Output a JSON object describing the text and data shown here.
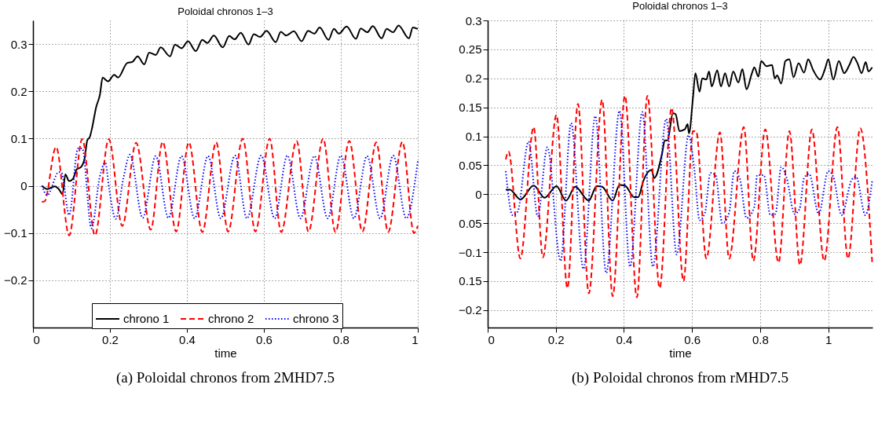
{
  "chart_data": [
    {
      "type": "line",
      "title": "Poloidal chronos 1–3",
      "xlabel": "time",
      "xlim": [
        0,
        1
      ],
      "ylim": [
        -0.3,
        0.35
      ],
      "xticks": [
        0,
        0.2,
        0.4,
        0.6,
        0.8,
        1
      ],
      "yticks": [
        {
          "value": -0.2,
          "label": "−0.2"
        },
        {
          "value": -0.1,
          "label": "−0.1"
        },
        0,
        0.1,
        0.2,
        0.3
      ],
      "grid": true,
      "legend": "bottom",
      "marker": "none",
      "annotations": [
        "(a) Poloidal chronos from 2MHD7.5"
      ],
      "series": [
        {
          "name": "chrono 1",
          "color": "#000000",
          "line_style": "solid",
          "x": [
            0.023,
            0.037,
            0.057,
            0.067,
            0.077,
            0.084,
            0.094,
            0.104,
            0.114,
            0.124,
            0.134,
            0.141,
            0.148,
            0.154,
            0.164,
            0.174,
            0.181,
            0.195,
            0.211,
            0.221,
            0.245,
            0.258,
            0.272,
            0.289,
            0.302,
            0.319,
            0.332,
            0.356,
            0.369,
            0.386,
            0.403,
            0.423,
            0.44,
            0.453,
            0.47,
            0.493,
            0.51,
            0.524,
            0.54,
            0.56,
            0.574,
            0.59,
            0.607,
            0.631,
            0.644,
            0.658,
            0.678,
            0.698,
            0.715,
            0.731,
            0.745,
            0.768,
            0.782,
            0.795,
            0.815,
            0.839,
            0.852,
            0.869,
            0.883,
            0.906,
            0.919,
            0.936,
            0.95,
            0.977,
            0.987,
            1.0
          ],
          "values": [
            0,
            -0.007,
            -0.001,
            -0.007,
            -0.018,
            0.024,
            0.01,
            0.015,
            0.035,
            0.039,
            0.057,
            0.096,
            0.104,
            0.124,
            0.166,
            0.193,
            0.229,
            0.221,
            0.235,
            0.229,
            0.26,
            0.262,
            0.274,
            0.257,
            0.282,
            0.277,
            0.293,
            0.274,
            0.299,
            0.291,
            0.306,
            0.285,
            0.309,
            0.302,
            0.318,
            0.293,
            0.317,
            0.31,
            0.324,
            0.299,
            0.321,
            0.315,
            0.328,
            0.304,
            0.326,
            0.318,
            0.327,
            0.306,
            0.328,
            0.322,
            0.335,
            0.309,
            0.332,
            0.322,
            0.337,
            0.311,
            0.333,
            0.325,
            0.338,
            0.312,
            0.332,
            0.325,
            0.339,
            0.312,
            0.335,
            0.332
          ]
        },
        {
          "name": "chrono 2",
          "color": "#ff0000",
          "line_style": "dashed",
          "x": [
            0.023,
            0.03,
            0.06,
            0.094,
            0.128,
            0.161,
            0.197,
            0.232,
            0.268,
            0.306,
            0.337,
            0.372,
            0.405,
            0.44,
            0.476,
            0.507,
            0.545,
            0.578,
            0.615,
            0.645,
            0.685,
            0.716,
            0.754,
            0.786,
            0.822,
            0.856,
            0.892,
            0.923,
            0.96,
            0.99,
            1.0
          ],
          "values": [
            -0.034,
            -0.033,
            0.082,
            -0.105,
            0.099,
            -0.105,
            0.099,
            -0.085,
            0.091,
            -0.093,
            0.093,
            -0.097,
            0.092,
            -0.098,
            0.092,
            -0.097,
            0.1,
            -0.097,
            0.1,
            -0.098,
            0.095,
            -0.097,
            0.1,
            -0.098,
            0.095,
            -0.097,
            0.092,
            -0.098,
            0.093,
            -0.1,
            -0.085
          ]
        },
        {
          "name": "chrono 3",
          "color": "#0000ff",
          "line_style": "dotted",
          "x": [
            0.023,
            0.037,
            0.067,
            0.074,
            0.094,
            0.117,
            0.128,
            0.152,
            0.174,
            0.188,
            0.198,
            0.215,
            0.235,
            0.252,
            0.285,
            0.319,
            0.352,
            0.386,
            0.42,
            0.455,
            0.488,
            0.525,
            0.556,
            0.593,
            0.628,
            0.661,
            0.695,
            0.731,
            0.766,
            0.8,
            0.834,
            0.868,
            0.902,
            0.936,
            0.97,
            1.0
          ],
          "values": [
            0,
            -0.02,
            0.029,
            0.028,
            -0.062,
            0.079,
            0.079,
            -0.09,
            0.021,
            0.049,
            -0.007,
            -0.07,
            0.016,
            0.066,
            -0.068,
            0.063,
            -0.068,
            0.063,
            -0.069,
            0.063,
            -0.069,
            0.064,
            -0.069,
            0.064,
            -0.069,
            0.064,
            -0.069,
            0.063,
            -0.069,
            0.064,
            -0.069,
            0.063,
            -0.069,
            0.064,
            -0.069,
            0.052
          ]
        }
      ]
    },
    {
      "type": "line",
      "title": "Poloidal chronos 1–3",
      "xlabel": "time",
      "xlim": [
        0,
        1.13
      ],
      "ylim": [
        -0.23,
        0.3
      ],
      "xticks": [
        0,
        0.2,
        0.4,
        0.6,
        0.8,
        1
      ],
      "yticks": [
        {
          "value": -0.2,
          "label": "−0.2"
        },
        {
          "value": -0.15,
          "label": "0.15"
        },
        {
          "value": -0.1,
          "label": "−0.1"
        },
        {
          "value": -0.05,
          "label": "0.05"
        },
        0,
        0.05,
        0.1,
        0.15,
        0.2,
        0.25,
        0.3
      ],
      "grid": true,
      "legend": "top",
      "marker": "none",
      "annotations": [
        "(b) Poloidal chronos from rMHD7.5"
      ],
      "series": [
        {
          "name": "chrono 1",
          "color": "#000000",
          "line_style": "solid",
          "x": [
            0.053,
            0.065,
            0.096,
            0.135,
            0.167,
            0.202,
            0.23,
            0.257,
            0.297,
            0.32,
            0.336,
            0.367,
            0.387,
            0.403,
            0.43,
            0.442,
            0.457,
            0.481,
            0.489,
            0.512,
            0.52,
            0.528,
            0.544,
            0.552,
            0.563,
            0.579,
            0.587,
            0.591,
            0.603,
            0.61,
            0.622,
            0.63,
            0.642,
            0.65,
            0.658,
            0.674,
            0.685,
            0.697,
            0.709,
            0.721,
            0.736,
            0.748,
            0.76,
            0.776,
            0.783,
            0.795,
            0.803,
            0.819,
            0.835,
            0.843,
            0.85,
            0.862,
            0.874,
            0.886,
            0.898,
            0.913,
            0.929,
            0.941,
            0.956,
            0.976,
            0.992,
            1.0,
            1.015,
            1.031,
            1.047,
            1.062,
            1.074,
            1.086,
            1.098,
            1.11,
            1.118,
            1.129
          ],
          "values": [
            0.008,
            0.008,
            -0.009,
            0.015,
            -0.006,
            0.014,
            -0.011,
            0.013,
            -0.011,
            0.014,
            0.013,
            -0.011,
            0.016,
            0.015,
            -0.005,
            -0.005,
            0.023,
            0.042,
            0.028,
            0.07,
            0.093,
            0.093,
            0.14,
            0.138,
            0.109,
            0.112,
            0.121,
            0.105,
            0.168,
            0.209,
            0.177,
            0.2,
            0.198,
            0.212,
            0.186,
            0.214,
            0.186,
            0.209,
            0.186,
            0.212,
            0.193,
            0.216,
            0.181,
            0.209,
            0.219,
            0.203,
            0.23,
            0.221,
            0.223,
            0.2,
            0.205,
            0.191,
            0.23,
            0.233,
            0.202,
            0.226,
            0.21,
            0.233,
            0.214,
            0.198,
            0.219,
            0.233,
            0.198,
            0.23,
            0.209,
            0.223,
            0.237,
            0.226,
            0.209,
            0.228,
            0.212,
            0.219
          ]
        },
        {
          "name": "chrono 2",
          "color": "#ff0000",
          "line_style": "dashed",
          "x": [
            0.053,
            0.061,
            0.096,
            0.135,
            0.162,
            0.202,
            0.234,
            0.265,
            0.297,
            0.336,
            0.367,
            0.403,
            0.438,
            0.469,
            0.505,
            0.54,
            0.575,
            0.603,
            0.612,
            0.642,
            0.682,
            0.709,
            0.752,
            0.78,
            0.815,
            0.854,
            0.886,
            0.917,
            0.952,
            0.988,
            1.027,
            1.058,
            1.094,
            1.129
          ],
          "values": [
            0.06,
            0.074,
            -0.111,
            0.116,
            -0.109,
            0.137,
            -0.162,
            0.156,
            -0.171,
            0.163,
            -0.176,
            0.17,
            -0.178,
            0.17,
            -0.162,
            0.149,
            -0.15,
            0.109,
            0.109,
            -0.111,
            0.107,
            -0.111,
            0.116,
            -0.115,
            0.112,
            -0.118,
            0.109,
            -0.122,
            0.112,
            -0.115,
            0.116,
            -0.111,
            0.114,
            -0.117
          ]
        },
        {
          "name": "chrono 3",
          "color": "#0000ff",
          "line_style": "dotted",
          "x": [
            0.053,
            0.073,
            0.088,
            0.12,
            0.147,
            0.175,
            0.214,
            0.245,
            0.281,
            0.316,
            0.348,
            0.387,
            0.418,
            0.454,
            0.485,
            0.524,
            0.555,
            0.59,
            0.607,
            0.622,
            0.638,
            0.654,
            0.669,
            0.689,
            0.709,
            0.724,
            0.74,
            0.76,
            0.783,
            0.791,
            0.811,
            0.83,
            0.845,
            0.862,
            0.878,
            0.901,
            0.916,
            0.929,
            0.944,
            0.972,
            1.0,
            1.015,
            1.039,
            1.07,
            1.082,
            1.109,
            1.129
          ],
          "values": [
            0.04,
            -0.036,
            -0.03,
            0.091,
            -0.038,
            0.081,
            -0.115,
            0.123,
            -0.129,
            0.135,
            -0.136,
            0.144,
            -0.125,
            0.142,
            -0.125,
            0.13,
            -0.104,
            0.102,
            0.042,
            -0.045,
            -0.032,
            0.037,
            0.033,
            -0.05,
            -0.032,
            0.04,
            0.028,
            -0.041,
            -0.022,
            0.033,
            0.033,
            -0.036,
            -0.034,
            0.047,
            0.028,
            -0.034,
            -0.025,
            0.028,
            0.035,
            -0.034,
            0.04,
            0.03,
            -0.036,
            0.026,
            0.03,
            -0.036,
            0.023
          ]
        }
      ]
    }
  ]
}
